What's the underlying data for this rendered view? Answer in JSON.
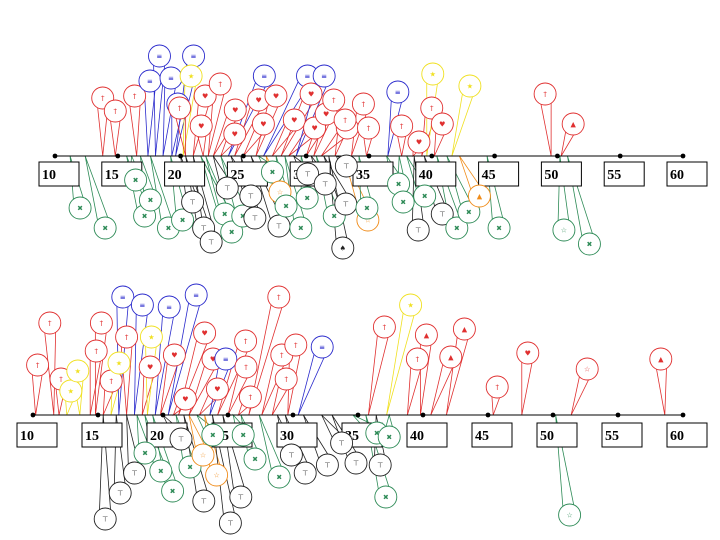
{
  "colors": {
    "red": "#e03030",
    "blue": "#2a2acc",
    "green": "#2e8b57",
    "black": "#222222",
    "orange": "#f08c1a",
    "yellow": "#f0e020"
  },
  "timelines": [
    {
      "ticks": [
        "10",
        "15",
        "20",
        "25",
        "30",
        "35",
        "40",
        "45",
        "50",
        "55",
        "60"
      ],
      "nodes": [
        {
          "t": 13.8,
          "c": "red",
          "g": "†",
          "dx": 0,
          "dy": -58
        },
        {
          "t": 14.8,
          "c": "red",
          "g": "†",
          "dx": 0,
          "dy": -45
        },
        {
          "t": 16.5,
          "c": "red",
          "g": "†",
          "dx": -2,
          "dy": -60
        },
        {
          "t": 17.4,
          "c": "blue",
          "g": "≡",
          "dx": 2,
          "dy": -75
        },
        {
          "t": 18.0,
          "c": "blue",
          "g": "≡",
          "dx": 4,
          "dy": -100
        },
        {
          "t": 18.6,
          "c": "blue",
          "g": "≡",
          "dx": 8,
          "dy": -78
        },
        {
          "t": 19.3,
          "c": "blue",
          "g": "≡",
          "dx": 6,
          "dy": -52
        },
        {
          "t": 19.6,
          "c": "blue",
          "g": "≡",
          "dx": 18,
          "dy": -100
        },
        {
          "t": 20.2,
          "c": "yellow",
          "g": "★",
          "dx": 8,
          "dy": -80
        },
        {
          "t": 20.4,
          "c": "red",
          "g": "†",
          "dx": -6,
          "dy": -48
        },
        {
          "t": 21.0,
          "c": "red",
          "g": "♥",
          "dx": 12,
          "dy": -60
        },
        {
          "t": 21.8,
          "c": "red",
          "g": "♥",
          "dx": -2,
          "dy": -30
        },
        {
          "t": 22.2,
          "c": "red",
          "g": "†",
          "dx": 12,
          "dy": -72
        },
        {
          "t": 22.6,
          "c": "red",
          "g": "♥",
          "dx": 22,
          "dy": -46
        },
        {
          "t": 23.2,
          "c": "red",
          "g": "♥",
          "dx": 14,
          "dy": -22
        },
        {
          "t": 23.8,
          "c": "blue",
          "g": "≡",
          "dx": 36,
          "dy": -80
        },
        {
          "t": 24.3,
          "c": "red",
          "g": "♥",
          "dx": 24,
          "dy": -56
        },
        {
          "t": 25.0,
          "c": "red",
          "g": "♥",
          "dx": 20,
          "dy": -32
        },
        {
          "t": 26.0,
          "c": "red",
          "g": "♥",
          "dx": 20,
          "dy": -60
        },
        {
          "t": 26.6,
          "c": "blue",
          "g": "≡",
          "dx": 44,
          "dy": -80
        },
        {
          "t": 27.3,
          "c": "red",
          "g": "♥",
          "dx": 22,
          "dy": -36
        },
        {
          "t": 28.0,
          "c": "red",
          "g": "♥",
          "dx": 30,
          "dy": -62
        },
        {
          "t": 28.6,
          "c": "red",
          "g": "♥",
          "dx": 26,
          "dy": -28
        },
        {
          "t": 29.2,
          "c": "blue",
          "g": "≡",
          "dx": 28,
          "dy": -80
        },
        {
          "t": 30.0,
          "c": "red",
          "g": "♥",
          "dx": 20,
          "dy": -42
        },
        {
          "t": 30.6,
          "c": "red",
          "g": "†",
          "dx": 20,
          "dy": -56
        },
        {
          "t": 31.2,
          "c": "red",
          "g": "♥",
          "dx": 26,
          "dy": -28
        },
        {
          "t": 32.3,
          "c": "red",
          "g": "†",
          "dx": 10,
          "dy": -36
        },
        {
          "t": 33.6,
          "c": "red",
          "g": "†",
          "dx": 12,
          "dy": -52
        },
        {
          "t": 34.8,
          "c": "red",
          "g": "†",
          "dx": 2,
          "dy": -28
        },
        {
          "t": 36.5,
          "c": "blue",
          "g": "≡",
          "dx": 10,
          "dy": -64
        },
        {
          "t": 37.6,
          "c": "red",
          "g": "†",
          "dx": 0,
          "dy": -30
        },
        {
          "t": 38.5,
          "c": "red",
          "g": "♥",
          "dx": 6,
          "dy": -14
        },
        {
          "t": 39.2,
          "c": "red",
          "g": "†",
          "dx": 10,
          "dy": -48
        },
        {
          "t": 39.6,
          "c": "yellow",
          "g": "★",
          "dx": 6,
          "dy": -82
        },
        {
          "t": 40.2,
          "c": "red",
          "g": "♥",
          "dx": 8,
          "dy": -32
        },
        {
          "t": 41.6,
          "c": "yellow",
          "g": "★",
          "dx": 18,
          "dy": -70
        },
        {
          "t": 49.5,
          "c": "red",
          "g": "†",
          "dx": -6,
          "dy": -62
        },
        {
          "t": 50.3,
          "c": "red",
          "g": "▲",
          "dx": 12,
          "dy": -32
        },
        {
          "t": 11.2,
          "c": "green",
          "g": "✖",
          "dx": 10,
          "dy": 52
        },
        {
          "t": 12.4,
          "c": "green",
          "g": "✖",
          "dx": 20,
          "dy": 72
        },
        {
          "t": 15.7,
          "c": "green",
          "g": "✖",
          "dx": 18,
          "dy": 60
        },
        {
          "t": 16.1,
          "c": "green",
          "g": "✖",
          "dx": 4,
          "dy": 24
        },
        {
          "t": 16.8,
          "c": "green",
          "g": "✖",
          "dx": 10,
          "dy": 44
        },
        {
          "t": 17.6,
          "c": "green",
          "g": "✖",
          "dx": 18,
          "dy": 72
        },
        {
          "t": 19.2,
          "c": "green",
          "g": "✖",
          "dx": 12,
          "dy": 64
        },
        {
          "t": 20.0,
          "c": "black",
          "g": "⊤",
          "dx": 12,
          "dy": 46
        },
        {
          "t": 20.4,
          "c": "black",
          "g": "⊤",
          "dx": 18,
          "dy": 72
        },
        {
          "t": 21.0,
          "c": "black",
          "g": "⊤",
          "dx": 18,
          "dy": 86
        },
        {
          "t": 21.6,
          "c": "green",
          "g": "✖",
          "dx": 24,
          "dy": 58
        },
        {
          "t": 22.0,
          "c": "green",
          "g": "✖",
          "dx": 26,
          "dy": 76
        },
        {
          "t": 22.6,
          "c": "black",
          "g": "⊤",
          "dx": 14,
          "dy": 32
        },
        {
          "t": 23.2,
          "c": "green",
          "g": "✖",
          "dx": 22,
          "dy": 60
        },
        {
          "t": 24.0,
          "c": "black",
          "g": "⊤",
          "dx": 20,
          "dy": 40
        },
        {
          "t": 24.8,
          "c": "black",
          "g": "⊤",
          "dx": 14,
          "dy": 62
        },
        {
          "t": 25.6,
          "c": "black",
          "g": "⊤",
          "dx": 28,
          "dy": 70
        },
        {
          "t": 26.2,
          "c": "green",
          "g": "✖",
          "dx": 14,
          "dy": 16
        },
        {
          "t": 26.8,
          "c": "orange",
          "g": "☆",
          "dx": 14,
          "dy": 36
        },
        {
          "t": 27.6,
          "c": "green",
          "g": "✖",
          "dx": 10,
          "dy": 50
        },
        {
          "t": 28.3,
          "c": "green",
          "g": "✖",
          "dx": 16,
          "dy": 72
        },
        {
          "t": 29.0,
          "c": "black",
          "g": "⊤",
          "dx": 14,
          "dy": 18
        },
        {
          "t": 29.6,
          "c": "green",
          "g": "✖",
          "dx": 6,
          "dy": 42
        },
        {
          "t": 30.4,
          "c": "black",
          "g": "⊤",
          "dx": 14,
          "dy": 28
        },
        {
          "t": 30.8,
          "c": "green",
          "g": "✖",
          "dx": 18,
          "dy": 60
        },
        {
          "t": 31.4,
          "c": "black",
          "g": "⊤",
          "dx": 22,
          "dy": 48
        },
        {
          "t": 31.8,
          "c": "black",
          "g": "♠",
          "dx": 14,
          "dy": 92
        },
        {
          "t": 32.4,
          "c": "black",
          "g": "⊤",
          "dx": 10,
          "dy": 10
        },
        {
          "t": 33.0,
          "c": "orange",
          "g": "☆",
          "dx": 24,
          "dy": 64
        },
        {
          "t": 34.2,
          "c": "green",
          "g": "✖",
          "dx": 8,
          "dy": 52
        },
        {
          "t": 36.4,
          "c": "green",
          "g": "✖",
          "dx": 12,
          "dy": 28
        },
        {
          "t": 37.4,
          "c": "green",
          "g": "✖",
          "dx": 4,
          "dy": 46
        },
        {
          "t": 38.0,
          "c": "green",
          "g": "✖",
          "dx": 18,
          "dy": 40
        },
        {
          "t": 38.6,
          "c": "black",
          "g": "⊤",
          "dx": 4,
          "dy": 74
        },
        {
          "t": 39.4,
          "c": "black",
          "g": "⊤",
          "dx": 18,
          "dy": 58
        },
        {
          "t": 40.4,
          "c": "green",
          "g": "✖",
          "dx": 20,
          "dy": 72
        },
        {
          "t": 41.2,
          "c": "green",
          "g": "✖",
          "dx": 22,
          "dy": 56
        },
        {
          "t": 42.2,
          "c": "orange",
          "g": "▲",
          "dx": 20,
          "dy": 40
        },
        {
          "t": 44.4,
          "c": "green",
          "g": "✖",
          "dx": 12,
          "dy": 72
        },
        {
          "t": 50.2,
          "c": "green",
          "g": "☆",
          "dx": 4,
          "dy": 74
        },
        {
          "t": 50.8,
          "c": "green",
          "g": "✖",
          "dx": 22,
          "dy": 88
        }
      ]
    },
    {
      "ticks": [
        "10",
        "15",
        "20",
        "25",
        "30",
        "35",
        "40",
        "45",
        "50",
        "55",
        "60"
      ],
      "nodes": [
        {
          "t": 10.2,
          "c": "red",
          "g": "†",
          "dx": 2,
          "dy": -50
        },
        {
          "t": 11.6,
          "c": "red",
          "g": "†",
          "dx": -4,
          "dy": -92
        },
        {
          "t": 12.0,
          "c": "red",
          "g": "†",
          "dx": 2,
          "dy": -36
        },
        {
          "t": 12.6,
          "c": "yellow",
          "g": "★",
          "dx": 4,
          "dy": -24
        },
        {
          "t": 13.6,
          "c": "yellow",
          "g": "★",
          "dx": -2,
          "dy": -44
        },
        {
          "t": 14.4,
          "c": "red",
          "g": "†",
          "dx": 6,
          "dy": -64
        },
        {
          "t": 14.8,
          "c": "red",
          "g": "†",
          "dx": 6,
          "dy": -92
        },
        {
          "t": 15.4,
          "c": "red",
          "g": "†",
          "dx": 8,
          "dy": -34
        },
        {
          "t": 16.0,
          "c": "yellow",
          "g": "★",
          "dx": 8,
          "dy": -52
        },
        {
          "t": 16.6,
          "c": "blue",
          "g": "≡",
          "dx": 4,
          "dy": -118
        },
        {
          "t": 17.2,
          "c": "red",
          "g": "†",
          "dx": 0,
          "dy": -78
        },
        {
          "t": 17.8,
          "c": "blue",
          "g": "≡",
          "dx": 8,
          "dy": -110
        },
        {
          "t": 18.4,
          "c": "red",
          "g": "♥",
          "dx": 8,
          "dy": -48
        },
        {
          "t": 18.8,
          "c": "yellow",
          "g": "★",
          "dx": 4,
          "dy": -78
        },
        {
          "t": 19.4,
          "c": "blue",
          "g": "≡",
          "dx": 14,
          "dy": -108
        },
        {
          "t": 19.8,
          "c": "red",
          "g": "♥",
          "dx": 14,
          "dy": -60
        },
        {
          "t": 20.4,
          "c": "blue",
          "g": "≡",
          "dx": 28,
          "dy": -120
        },
        {
          "t": 20.8,
          "c": "red",
          "g": "♥",
          "dx": 12,
          "dy": -16
        },
        {
          "t": 21.2,
          "c": "red",
          "g": "♥",
          "dx": 26,
          "dy": -82
        },
        {
          "t": 22.0,
          "c": "red",
          "g": "♥",
          "dx": 24,
          "dy": -56
        },
        {
          "t": 22.8,
          "c": "red",
          "g": "♥",
          "dx": 18,
          "dy": -26
        },
        {
          "t": 23.6,
          "c": "blue",
          "g": "≡",
          "dx": 16,
          "dy": -56
        },
        {
          "t": 24.2,
          "c": "red",
          "g": "†",
          "dx": 28,
          "dy": -74
        },
        {
          "t": 25.0,
          "c": "red",
          "g": "†",
          "dx": 18,
          "dy": -48
        },
        {
          "t": 25.8,
          "c": "red",
          "g": "†",
          "dx": 12,
          "dy": -18
        },
        {
          "t": 26.6,
          "c": "red",
          "g": "†",
          "dx": 30,
          "dy": -118
        },
        {
          "t": 27.6,
          "c": "red",
          "g": "†",
          "dx": 20,
          "dy": -60
        },
        {
          "t": 28.4,
          "c": "red",
          "g": "†",
          "dx": 14,
          "dy": -36
        },
        {
          "t": 29.6,
          "c": "red",
          "g": "†",
          "dx": 8,
          "dy": -70
        },
        {
          "t": 30.4,
          "c": "blue",
          "g": "≡",
          "dx": 24,
          "dy": -68
        },
        {
          "t": 35.8,
          "c": "red",
          "g": "†",
          "dx": 16,
          "dy": -88
        },
        {
          "t": 37.2,
          "c": "yellow",
          "g": "★",
          "dx": 24,
          "dy": -110
        },
        {
          "t": 38.8,
          "c": "red",
          "g": "†",
          "dx": 10,
          "dy": -56
        },
        {
          "t": 39.8,
          "c": "red",
          "g": "▲",
          "dx": 6,
          "dy": -80
        },
        {
          "t": 40.6,
          "c": "red",
          "g": "▲",
          "dx": 20,
          "dy": -58
        },
        {
          "t": 41.8,
          "c": "red",
          "g": "▲",
          "dx": 18,
          "dy": -86
        },
        {
          "t": 45.4,
          "c": "red",
          "g": "†",
          "dx": 4,
          "dy": -28
        },
        {
          "t": 47.6,
          "c": "red",
          "g": "♥",
          "dx": 6,
          "dy": -62
        },
        {
          "t": 51.4,
          "c": "red",
          "g": "☆",
          "dx": 16,
          "dy": -46
        },
        {
          "t": 58.6,
          "c": "red",
          "g": "▲",
          "dx": -4,
          "dy": -56
        },
        {
          "t": 15.4,
          "c": "black",
          "g": "⊤",
          "dx": 2,
          "dy": 104
        },
        {
          "t": 16.4,
          "c": "black",
          "g": "⊤",
          "dx": 4,
          "dy": 78
        },
        {
          "t": 17.2,
          "c": "black",
          "g": "⊤",
          "dx": 8,
          "dy": 58
        },
        {
          "t": 18.0,
          "c": "green",
          "g": "✖",
          "dx": 8,
          "dy": 38
        },
        {
          "t": 18.6,
          "c": "green",
          "g": "✖",
          "dx": 16,
          "dy": 56
        },
        {
          "t": 19.2,
          "c": "green",
          "g": "✖",
          "dx": 20,
          "dy": 76
        },
        {
          "t": 20.0,
          "c": "black",
          "g": "⊤",
          "dx": 18,
          "dy": 24
        },
        {
          "t": 21.0,
          "c": "green",
          "g": "✖",
          "dx": 14,
          "dy": 52
        },
        {
          "t": 21.6,
          "c": "black",
          "g": "⊤",
          "dx": 20,
          "dy": 86
        },
        {
          "t": 22.0,
          "c": "orange",
          "g": "☆",
          "dx": 14,
          "dy": 40
        },
        {
          "t": 22.6,
          "c": "green",
          "g": "✖",
          "dx": 16,
          "dy": 20
        },
        {
          "t": 23.2,
          "c": "orange",
          "g": "☆",
          "dx": 12,
          "dy": 60
        },
        {
          "t": 23.8,
          "c": "black",
          "g": "⊤",
          "dx": 18,
          "dy": 108
        },
        {
          "t": 24.6,
          "c": "black",
          "g": "⊤",
          "dx": 18,
          "dy": 82
        },
        {
          "t": 25.4,
          "c": "green",
          "g": "✖",
          "dx": 10,
          "dy": 20
        },
        {
          "t": 26.0,
          "c": "green",
          "g": "✖",
          "dx": 14,
          "dy": 44
        },
        {
          "t": 27.4,
          "c": "green",
          "g": "✖",
          "dx": 20,
          "dy": 62
        },
        {
          "t": 28.8,
          "c": "black",
          "g": "⊤",
          "dx": 14,
          "dy": 40
        },
        {
          "t": 29.4,
          "c": "black",
          "g": "⊤",
          "dx": 20,
          "dy": 58
        },
        {
          "t": 30.8,
          "c": "black",
          "g": "⊤",
          "dx": 24,
          "dy": 50
        },
        {
          "t": 32.2,
          "c": "black",
          "g": "⊤",
          "dx": 20,
          "dy": 28
        },
        {
          "t": 33.0,
          "c": "black",
          "g": "⊤",
          "dx": 24,
          "dy": 48
        },
        {
          "t": 34.6,
          "c": "green",
          "g": "✖",
          "dx": 24,
          "dy": 18
        },
        {
          "t": 35.6,
          "c": "green",
          "g": "✖",
          "dx": 20,
          "dy": 82
        },
        {
          "t": 36.4,
          "c": "black",
          "g": "⊤",
          "dx": 4,
          "dy": 50
        },
        {
          "t": 37.4,
          "c": "green",
          "g": "✖",
          "dx": 0,
          "dy": 22
        },
        {
          "t": 50.2,
          "c": "green",
          "g": "☆",
          "dx": 14,
          "dy": 100
        }
      ]
    }
  ]
}
